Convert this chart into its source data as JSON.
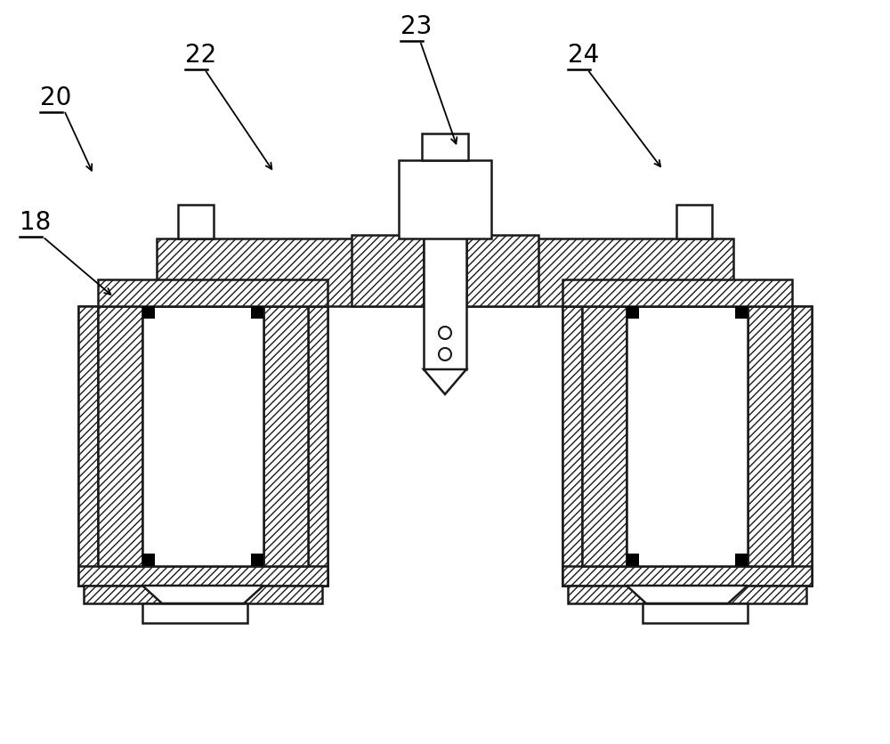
{
  "bg_color": "#ffffff",
  "line_color": "#1a1a1a",
  "label_fontsize": 20,
  "line_width": 1.8,
  "hatch_density": "////",
  "fig_width": 10.0,
  "fig_height": 8.36
}
